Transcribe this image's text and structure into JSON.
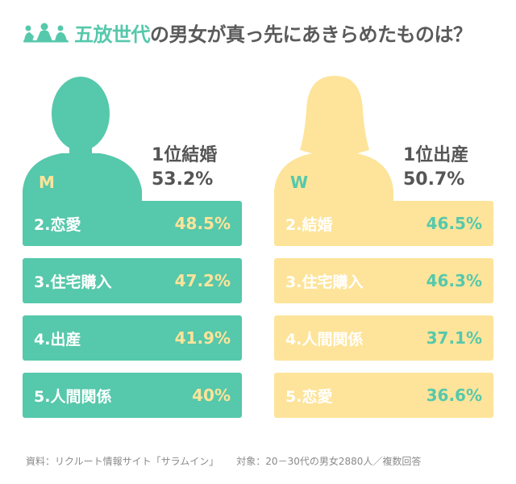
{
  "title": {
    "accent": "五放世代",
    "rest": "の男女が真っ先にあきらめたものは？"
  },
  "colors": {
    "teal": "#56c8ab",
    "yellow": "#fde49a",
    "text": "#555555"
  },
  "chart_data": {
    "type": "table",
    "groups": [
      {
        "letter": "M",
        "top": {
          "label": "1位結婚",
          "value_text": "53.2%",
          "value": 53.2
        },
        "items": [
          {
            "label": "2.恋愛",
            "value_text": "48.5%",
            "value": 48.5
          },
          {
            "label": "3.住宅購入",
            "value_text": "47.2%",
            "value": 47.2
          },
          {
            "label": "4.出産",
            "value_text": "41.9%",
            "value": 41.9
          },
          {
            "label": "5.人間関係",
            "value_text": "40%",
            "value": 40
          }
        ]
      },
      {
        "letter": "W",
        "top": {
          "label": "1位出産",
          "value_text": "50.7%",
          "value": 50.7
        },
        "items": [
          {
            "label": "2.結婚",
            "value_text": "46.5%",
            "value": 46.5
          },
          {
            "label": "3.住宅購入",
            "value_text": "46.3%",
            "value": 46.3
          },
          {
            "label": "4.人間関係",
            "value_text": "37.1%",
            "value": 37.1
          },
          {
            "label": "5.恋愛",
            "value_text": "36.6%",
            "value": 36.6
          }
        ]
      }
    ]
  },
  "footer": {
    "source": "資料：リクルート情報サイト「サラムイン」",
    "target": "対象：20－30代の男女2880人／複数回答"
  }
}
